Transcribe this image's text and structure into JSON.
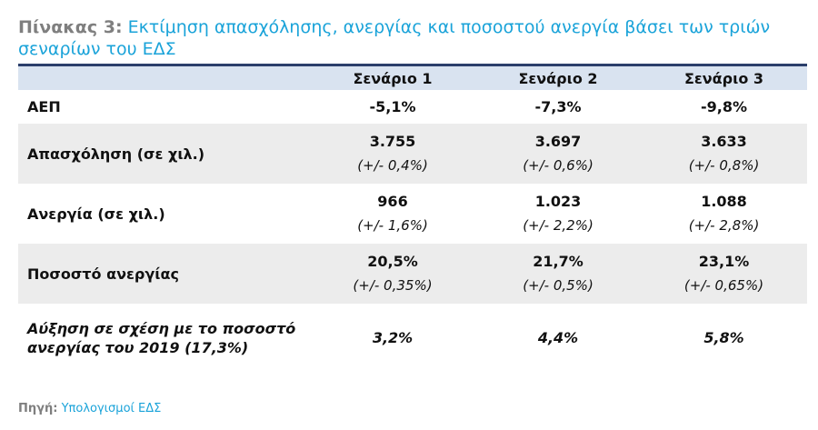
{
  "title": {
    "prefix": "Πίνακας 3:",
    "text": "Εκτίμηση απασχόλησης, ανεργίας και ποσοστού ανεργία βάσει των τριών σεναρίων του ΕΔΣ"
  },
  "table": {
    "headers": [
      "",
      "Σενάριο 1",
      "Σενάριο 2",
      "Σενάριο 3"
    ],
    "rows": [
      {
        "label": "ΑΕΠ",
        "cells": [
          {
            "value": "-5,1%"
          },
          {
            "value": "-7,3%"
          },
          {
            "value": "-9,8%"
          }
        ]
      },
      {
        "label": "Απασχόληση (σε χιλ.)",
        "cells": [
          {
            "value": "3.755",
            "range": "(+/- 0,4%)"
          },
          {
            "value": "3.697",
            "range": "(+/- 0,6%)"
          },
          {
            "value": "3.633",
            "range": "(+/- 0,8%)"
          }
        ]
      },
      {
        "label": "Ανεργία (σε χιλ.)",
        "cells": [
          {
            "value": "966",
            "range": "(+/- 1,6%)"
          },
          {
            "value": "1.023",
            "range": "(+/- 2,2%)"
          },
          {
            "value": "1.088",
            "range": "(+/- 2,8%)"
          }
        ]
      },
      {
        "label": "Ποσοστό ανεργίας",
        "cells": [
          {
            "value": "20,5%",
            "range": "(+/- 0,35%)"
          },
          {
            "value": "21,7%",
            "range": "(+/- 0,5%)"
          },
          {
            "value": "23,1%",
            "range": "(+/- 0,65%)"
          }
        ]
      },
      {
        "label": "Αύξηση σε σχέση με το ποσοστό ανεργίας του 2019 (17,3%)",
        "cells": [
          {
            "value": "3,2%"
          },
          {
            "value": "4,4%"
          },
          {
            "value": "5,8%"
          }
        ]
      }
    ]
  },
  "source": {
    "label": "Πηγή:",
    "value": "Υπολογισμοί ΕΔΣ"
  },
  "colors": {
    "accent": "#1aa3d9",
    "header_bg": "#d9e3f0",
    "rule": "#2b3f6b",
    "shade": "#ececec",
    "muted": "#7f7f7f"
  }
}
